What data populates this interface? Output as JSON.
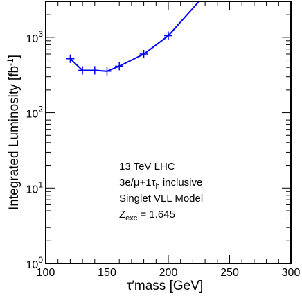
{
  "chart_data": {
    "type": "line",
    "title": "",
    "xlabel_symbol": "τ′",
    "xlabel": "mass  [GeV]",
    "ylabel": "Integrated Luminosity [fb",
    "ylabel_sup": "-1",
    "ylabel_close": "]",
    "x_scale": "linear",
    "y_scale": "log",
    "xlim": [
      100,
      300
    ],
    "ylim": [
      1,
      3000
    ],
    "x_ticks": [
      {
        "value": 100,
        "label": "100"
      },
      {
        "value": 150,
        "label": "150"
      },
      {
        "value": 200,
        "label": "200"
      },
      {
        "value": 250,
        "label": "250"
      },
      {
        "value": 300,
        "label": "300"
      }
    ],
    "y_ticks": [
      {
        "value": 1,
        "base": "10",
        "exp": "0"
      },
      {
        "value": 10,
        "base": "10",
        "exp": "1"
      },
      {
        "value": 100,
        "base": "10",
        "exp": "2"
      },
      {
        "value": 1000,
        "base": "10",
        "exp": "3"
      }
    ],
    "grid": false,
    "legend": "none",
    "series": [
      {
        "color": "#0000ff",
        "markers": "plus",
        "x": [
          120,
          130,
          140,
          150,
          160,
          180,
          200,
          225
        ],
        "y": [
          520,
          365,
          365,
          355,
          415,
          600,
          1050,
          3000
        ]
      }
    ],
    "annotations": [
      {
        "text": "13 TeV LHC"
      },
      {
        "parts": [
          {
            "t": "3e/μ+1τ"
          },
          {
            "t": "h",
            "sub": true
          },
          {
            "t": " inclusive"
          }
        ]
      },
      {
        "text": "Singlet VLL Model"
      },
      {
        "parts": [
          {
            "t": "Z"
          },
          {
            "t": "exc",
            "sub": true
          },
          {
            "t": " = 1.645"
          }
        ]
      }
    ]
  }
}
